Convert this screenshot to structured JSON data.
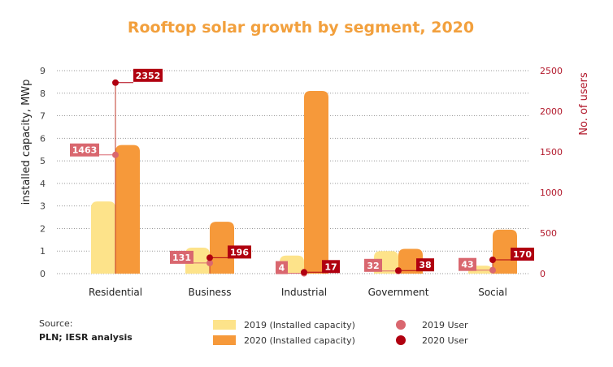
{
  "chart_data": {
    "type": "bar",
    "title": "Rooftop solar growth by segment, 2020",
    "ylabel": "installed capacity, MWp",
    "y2label": "No. of users",
    "ylim": [
      0,
      9
    ],
    "y2lim": [
      0,
      2500
    ],
    "yticks": [
      "0",
      "1",
      "2",
      "3",
      "4",
      "5",
      "6",
      "7",
      "8",
      "9"
    ],
    "y2ticks": [
      "0",
      "500",
      "1000",
      "1500",
      "2000",
      "2500"
    ],
    "categories": [
      "Residential",
      "Business",
      "Industrial",
      "Government",
      "Social"
    ],
    "series": [
      {
        "name": "2019 (Installed capacity)",
        "kind": "bar",
        "color": "#fde38a",
        "values": [
          3.2,
          1.15,
          0.8,
          1.0,
          0.35
        ]
      },
      {
        "name": "2020 (Installed capacity)",
        "kind": "bar",
        "color": "#f6993a",
        "values": [
          5.7,
          2.3,
          8.1,
          1.1,
          1.95
        ]
      },
      {
        "name": "2019 User",
        "kind": "point",
        "color": "#d9676f",
        "values": [
          1463,
          131,
          4,
          32,
          43
        ],
        "labels": [
          "1463",
          "131",
          "4",
          "32",
          "43"
        ]
      },
      {
        "name": "2020 User",
        "kind": "point",
        "color": "#b00010",
        "values": [
          2352,
          196,
          17,
          38,
          170
        ],
        "labels": [
          "2352",
          "196",
          "17",
          "38",
          "170"
        ]
      }
    ],
    "grid": true,
    "legend": "bottom"
  },
  "source": {
    "label": "Source:",
    "text": "PLN; IESR analysis"
  }
}
